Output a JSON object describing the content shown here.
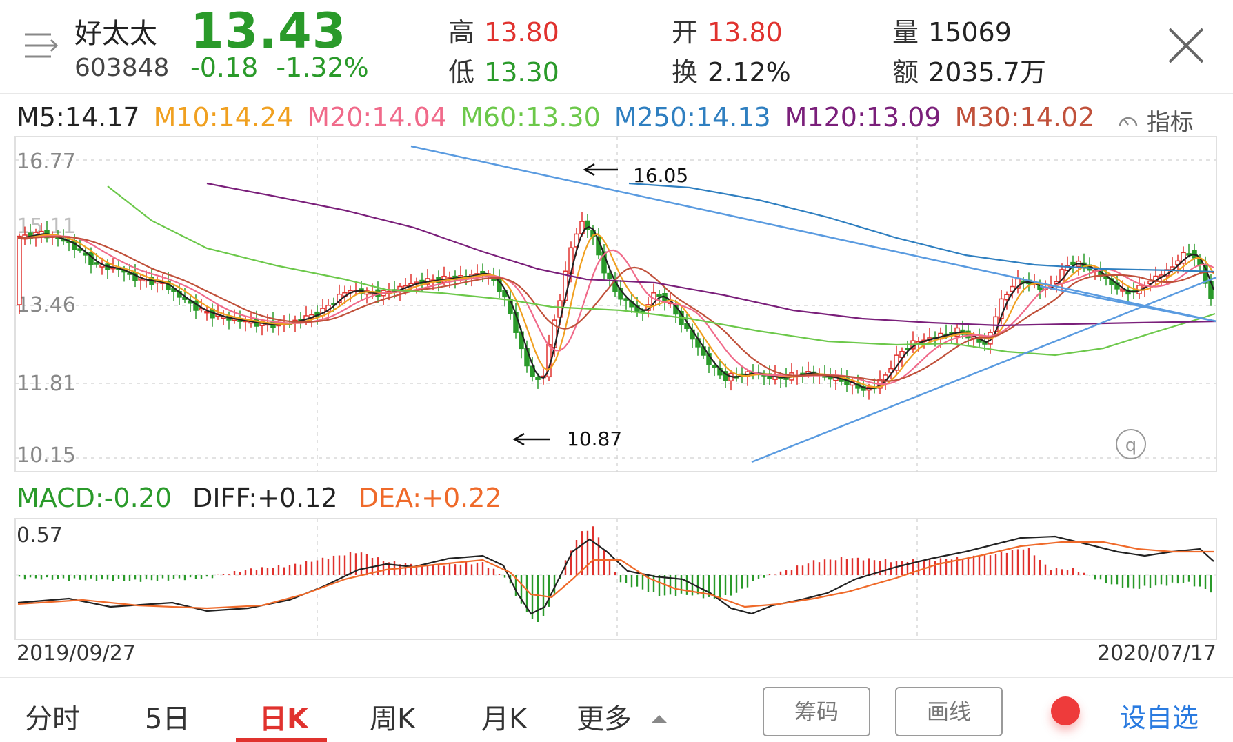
{
  "stock": {
    "name": "好太太",
    "code": "603848",
    "price": "13.43",
    "change_abs": "-0.18",
    "change_pct": "-1.32%"
  },
  "stats": {
    "high_label": "高",
    "high": "13.80",
    "low_label": "低",
    "low": "13.30",
    "open_label": "开",
    "open": "13.80",
    "turnover_label": "换",
    "turnover": "2.12%",
    "volume_label": "量",
    "volume": "15069",
    "amount_label": "额",
    "amount": "2035.7万"
  },
  "ma_legend": [
    {
      "text": "M5:14.17",
      "color": "#222222"
    },
    {
      "text": "M10:14.24",
      "color": "#f0a020"
    },
    {
      "text": "M20:14.04",
      "color": "#f06a8a"
    },
    {
      "text": "M60:13.30",
      "color": "#6cc84a"
    },
    {
      "text": "M250:14.13",
      "color": "#2f7fc0"
    },
    {
      "text": "M120:13.09",
      "color": "#7a1f7a"
    },
    {
      "text": "M30:14.02",
      "color": "#c0503a"
    }
  ],
  "indicator_label": "指标",
  "price_axis": [
    "16.77",
    "13.46",
    "11.81",
    "10.15"
  ],
  "price_axis_partial": "15.11",
  "annotations": {
    "high": "16.05",
    "low": "10.87"
  },
  "macd": {
    "macd_text": "MACD:-0.20",
    "diff_text": "DIFF:+0.12",
    "dea_text": "DEA:+0.22",
    "axis_top": "0.57",
    "colors": {
      "macd": "#2a9a2a",
      "diff": "#222222",
      "dea": "#ef6a2a"
    }
  },
  "dates": {
    "start": "2019/09/27",
    "end": "2020/07/17"
  },
  "tabs": [
    {
      "label": "分时",
      "active": false
    },
    {
      "label": "5日",
      "active": false
    },
    {
      "label": "日K",
      "active": true
    },
    {
      "label": "周K",
      "active": false
    },
    {
      "label": "月K",
      "active": false
    },
    {
      "label": "更多",
      "active": false
    }
  ],
  "buttons": {
    "chips": "筹码",
    "draw": "画线",
    "add_fav": "设自选"
  },
  "colors": {
    "up": "#e0322e",
    "down": "#2a9a2a",
    "accent": "#2a7be0"
  }
}
